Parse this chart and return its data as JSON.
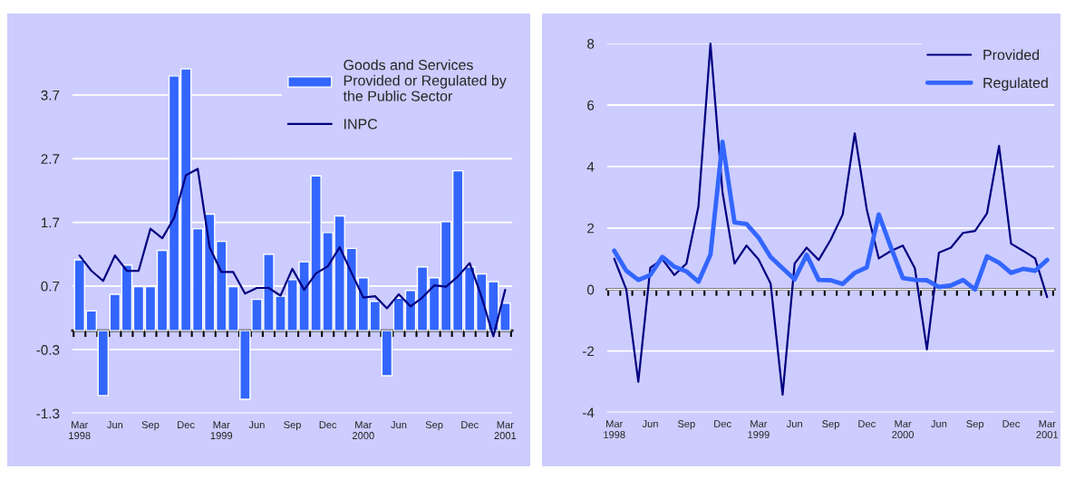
{
  "chart_data": [
    {
      "type": "bar",
      "categories": [
        "Mar\n1998",
        null,
        null,
        "Jun",
        null,
        null,
        "Sep",
        null,
        null,
        "Dec",
        null,
        null,
        "Mar\n1999",
        null,
        null,
        "Jun",
        null,
        null,
        "Sep",
        null,
        null,
        "Dec",
        null,
        null,
        "Mar\n2000",
        null,
        null,
        "Jun",
        null,
        null,
        "Sep",
        null,
        null,
        "Dec",
        null,
        null,
        "Mar\n2001"
      ],
      "series": [
        {
          "name": "Goods and Services\nProvided or Regulated by\nthe Public Sector",
          "color": "#3366ff",
          "values": [
            1.11,
            0.31,
            -1.02,
            0.57,
            1.03,
            0.69,
            0.69,
            1.26,
            4.0,
            4.11,
            1.6,
            1.83,
            1.4,
            0.69,
            -1.08,
            0.49,
            1.2,
            0.54,
            0.8,
            1.08,
            2.43,
            1.54,
            1.8,
            1.29,
            0.83,
            0.46,
            -0.71,
            0.51,
            0.63,
            1.0,
            0.83,
            1.71,
            2.51,
            1.0,
            0.89,
            0.77,
            0.43
          ]
        },
        {
          "type": "line",
          "name": "INPC",
          "color": "#000080",
          "values": [
            1.18,
            0.94,
            0.78,
            1.18,
            0.94,
            0.94,
            1.6,
            1.45,
            1.77,
            2.44,
            2.54,
            1.31,
            0.92,
            0.92,
            0.58,
            0.67,
            0.67,
            0.55,
            0.97,
            0.64,
            0.9,
            1.01,
            1.31,
            0.91,
            0.52,
            0.54,
            0.35,
            0.57,
            0.38,
            0.52,
            0.71,
            0.69,
            0.85,
            1.06,
            0.53,
            -0.09,
            0.64
          ]
        }
      ],
      "ylim": [
        -1.3,
        4.35
      ],
      "yticks": [
        -1.3,
        -0.3,
        0.7,
        1.7,
        2.7,
        3.7
      ],
      "grid": "y",
      "legend": "top right"
    },
    {
      "type": "line",
      "categories": [
        "Mar\n1998",
        null,
        null,
        "Jun",
        null,
        null,
        "Sep",
        null,
        null,
        "Dec",
        null,
        null,
        "Mar\n1999",
        null,
        null,
        "Jun",
        null,
        null,
        "Sep",
        null,
        null,
        "Dec",
        null,
        null,
        "Mar\n2000",
        null,
        null,
        "Jun",
        null,
        null,
        "Sep",
        null,
        null,
        "Dec",
        null,
        null,
        "Mar\n2001"
      ],
      "series": [
        {
          "name": "Provided",
          "color": "#000080",
          "values": [
            1.0,
            0.0,
            -3.0,
            0.71,
            0.98,
            0.47,
            0.84,
            2.7,
            8.0,
            3.17,
            0.84,
            1.43,
            0.98,
            0.2,
            -3.42,
            0.84,
            1.36,
            0.96,
            1.62,
            2.44,
            5.08,
            2.6,
            1.01,
            1.25,
            1.43,
            0.69,
            -1.95,
            1.2,
            1.36,
            1.84,
            1.9,
            2.48,
            4.67,
            1.49,
            1.26,
            1.01,
            -0.25
          ]
        },
        {
          "name": "Regulated",
          "color": "#3366ff",
          "values": [
            1.26,
            0.61,
            0.31,
            0.47,
            1.06,
            0.74,
            0.59,
            0.25,
            1.13,
            4.8,
            2.18,
            2.13,
            1.69,
            1.06,
            0.69,
            0.33,
            1.13,
            0.31,
            0.3,
            0.18,
            0.54,
            0.72,
            2.44,
            1.38,
            0.37,
            0.31,
            0.3,
            0.08,
            0.13,
            0.31,
            0.0,
            1.08,
            0.87,
            0.54,
            0.67,
            0.61,
            0.96
          ]
        }
      ],
      "ylim": [
        -4,
        8
      ],
      "yticks": [
        -4,
        -2,
        0,
        2,
        4,
        6,
        8
      ],
      "grid": "y",
      "legend": "top right"
    }
  ]
}
